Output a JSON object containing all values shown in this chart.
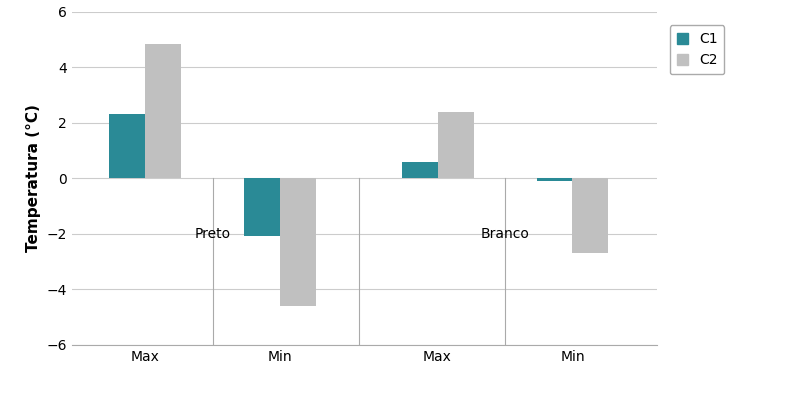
{
  "c1_values": [
    2.3,
    -2.1,
    0.6,
    -0.1
  ],
  "c2_values": [
    4.85,
    -4.6,
    2.4,
    -2.7
  ],
  "c1_color": "#2a8a96",
  "c2_color": "#c0c0c0",
  "ylabel": "Temperatura (°C)",
  "ylim": [
    -6,
    6
  ],
  "yticks": [
    -6,
    -4,
    -2,
    0,
    2,
    4,
    6
  ],
  "legend_labels": [
    "C1",
    "C2"
  ],
  "background_color": "#ffffff",
  "bar_width": 0.32,
  "subgroup_labels": [
    "Max",
    "Min",
    "Max",
    "Min"
  ],
  "group_label_preto": "Preto",
  "group_label_branco": "Branco",
  "centers": [
    0.85,
    2.05,
    3.45,
    4.65
  ]
}
